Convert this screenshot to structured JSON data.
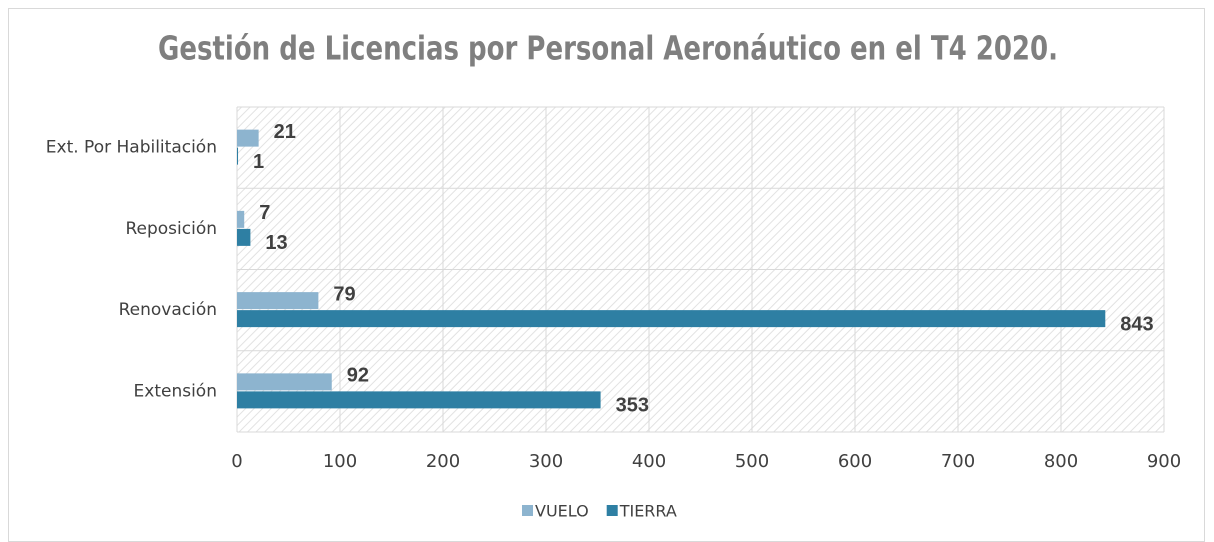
{
  "chart_data": {
    "type": "hbar",
    "title": "Gestión de Licencias por Personal Aeronáutico en el T4 2020.",
    "categories": [
      "Ext. Por Habilitación",
      "Reposición",
      "Renovación",
      "Extensión"
    ],
    "series": [
      {
        "name": "VUELO",
        "color": "#8db4cf",
        "values": [
          21,
          7,
          79,
          92
        ]
      },
      {
        "name": "TIERRA",
        "color": "#2e7fa3",
        "values": [
          1,
          13,
          843,
          353
        ]
      }
    ],
    "xlim": [
      0,
      900
    ],
    "xticks": [
      0,
      100,
      200,
      300,
      400,
      500,
      600,
      700,
      800,
      900
    ],
    "grid": true,
    "legend": "bottom"
  }
}
